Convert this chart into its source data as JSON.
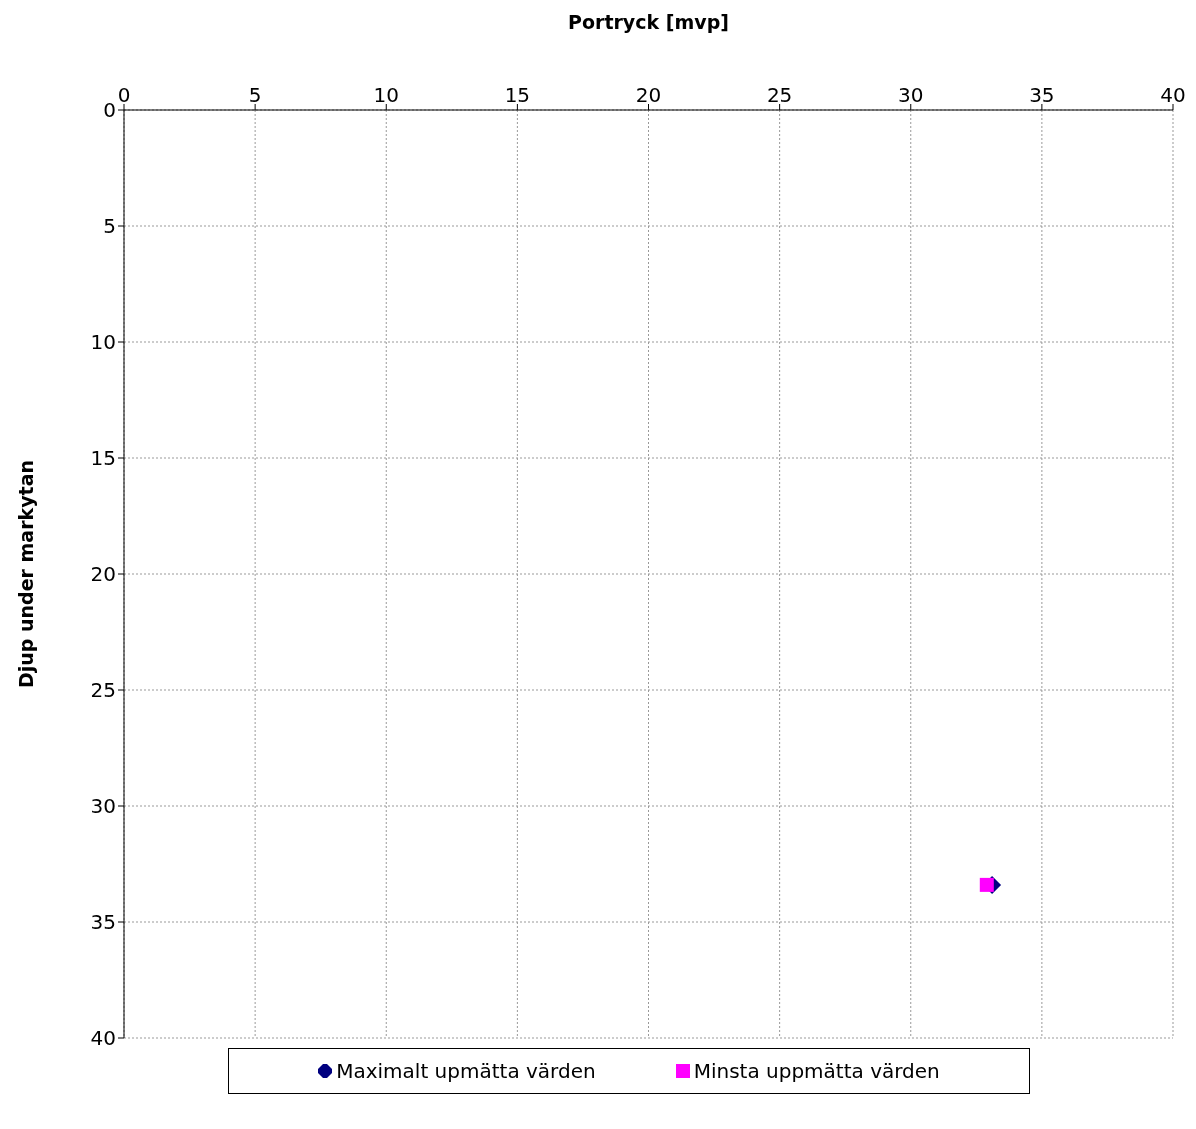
{
  "chart_data": {
    "type": "scatter",
    "xlabel": "Portryck [mvp]",
    "ylabel": "Djup under markytan",
    "xlim": [
      0,
      40
    ],
    "xticks": [
      0,
      5,
      10,
      15,
      20,
      25,
      30,
      35,
      40
    ],
    "ylim": [
      40,
      0
    ],
    "yticks": [
      0,
      5,
      10,
      15,
      20,
      25,
      30,
      35,
      40
    ],
    "grid": true,
    "legend": "bottom",
    "series": [
      {
        "name": "Maximalt upmätta värden",
        "color": "#000080",
        "marker": "diamond",
        "x": [
          33.1
        ],
        "values": [
          33.4
        ]
      },
      {
        "name": "Minsta uppmätta värden",
        "color": "#ff00ff",
        "marker": "square",
        "x": [
          32.9
        ],
        "values": [
          33.4
        ]
      }
    ]
  }
}
